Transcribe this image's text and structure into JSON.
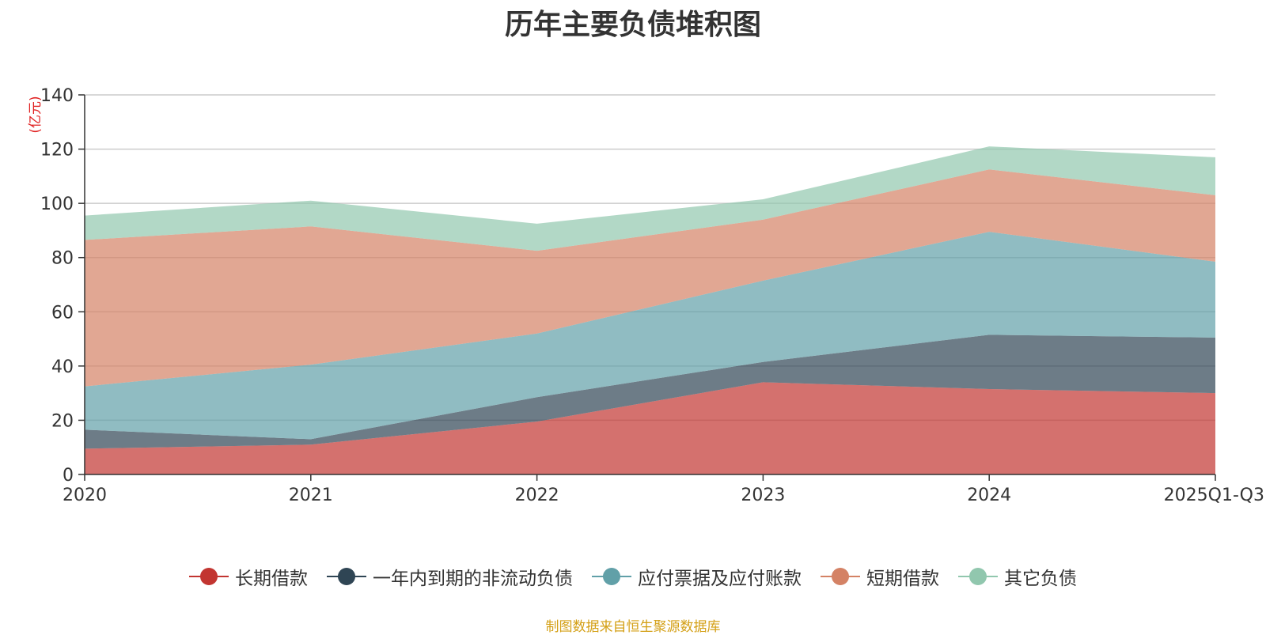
{
  "chart_data": {
    "type": "area",
    "stacked": true,
    "title": "历年主要负债堆积图",
    "unit_label": "(亿元)",
    "categories": [
      "2020",
      "2021",
      "2022",
      "2023",
      "2024",
      "2025Q1-Q3"
    ],
    "ylim": [
      0,
      140
    ],
    "yticks": [
      0,
      20,
      40,
      60,
      80,
      100,
      120,
      140
    ],
    "grid": true,
    "legend_position": "bottom",
    "series": [
      {
        "name": "长期借款",
        "color": "#c23531",
        "values": [
          9.5,
          11,
          19.5,
          34,
          31.5,
          30
        ]
      },
      {
        "name": "一年内到期的非流动负债",
        "color": "#2f4554",
        "values": [
          7,
          2,
          9,
          7.5,
          20,
          20.5
        ]
      },
      {
        "name": "应付票据及应付账款",
        "color": "#61a0a8",
        "values": [
          16,
          27.5,
          23.5,
          30,
          38,
          28
        ]
      },
      {
        "name": "短期借款",
        "color": "#d48265",
        "values": [
          54,
          51,
          30.5,
          22.5,
          23,
          24.5
        ]
      },
      {
        "name": "其它负债",
        "color": "#91c7ae",
        "values": [
          9,
          9.5,
          10,
          7.5,
          8.5,
          14
        ]
      }
    ],
    "source": "制图数据来自恒生聚源数据库"
  }
}
